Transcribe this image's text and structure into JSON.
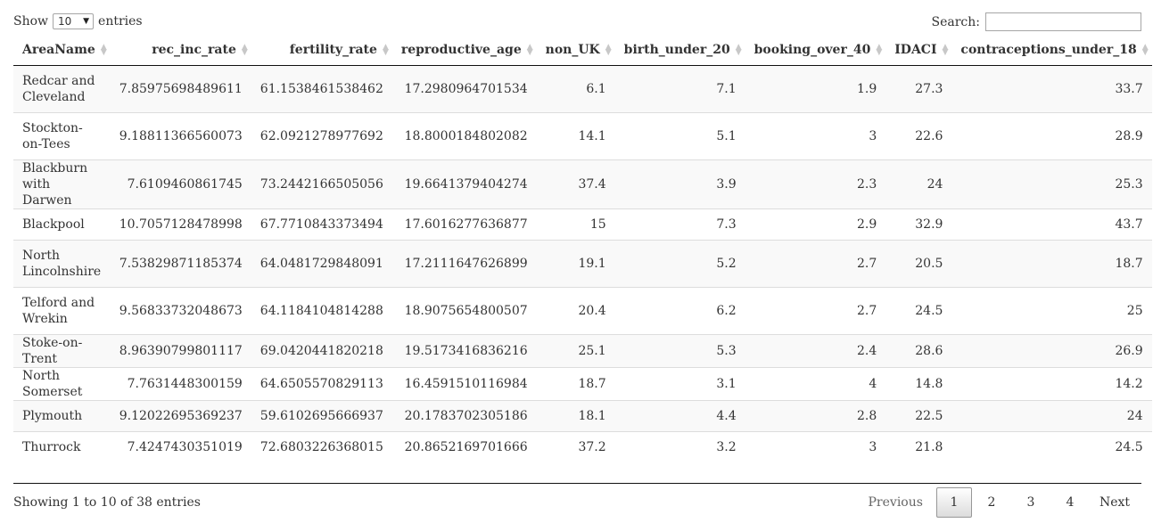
{
  "length": {
    "show_label": "Show",
    "selected": "10",
    "entries_label": "entries"
  },
  "search": {
    "label": "Search:",
    "value": "",
    "placeholder": ""
  },
  "table": {
    "columns": [
      "AreaName",
      "rec_inc_rate",
      "fertility_rate",
      "reproductive_age",
      "non_UK",
      "birth_under_20",
      "booking_over_40",
      "IDACI",
      "contraceptions_under_18"
    ],
    "rows": [
      [
        "Redcar and Cleveland",
        "7.85975698489611",
        "61.1538461538462",
        "17.2980964701534",
        "6.1",
        "7.1",
        "1.9",
        "27.3",
        "33.7"
      ],
      [
        "Stockton-on-Tees",
        "9.18811366560073",
        "62.0921278977692",
        "18.8000184802082",
        "14.1",
        "5.1",
        "3",
        "22.6",
        "28.9"
      ],
      [
        "Blackburn with Darwen",
        "7.6109460861745",
        "73.2442166505056",
        "19.6641379404274",
        "37.4",
        "3.9",
        "2.3",
        "24",
        "25.3"
      ],
      [
        "Blackpool",
        "10.7057128478998",
        "67.7710843373494",
        "17.6016277636877",
        "15",
        "7.3",
        "2.9",
        "32.9",
        "43.7"
      ],
      [
        "North Lincolnshire",
        "7.53829871185374",
        "64.0481729848091",
        "17.2111647626899",
        "19.1",
        "5.2",
        "2.7",
        "20.5",
        "18.7"
      ],
      [
        "Telford and Wrekin",
        "9.56833732048673",
        "64.1184104814288",
        "18.9075654800507",
        "20.4",
        "6.2",
        "2.7",
        "24.5",
        "25"
      ],
      [
        "Stoke-on-Trent",
        "8.96390799801117",
        "69.0420441820218",
        "19.5173416836216",
        "25.1",
        "5.3",
        "2.4",
        "28.6",
        "26.9"
      ],
      [
        "North Somerset",
        "7.7631448300159",
        "64.6505570829113",
        "16.4591510116984",
        "18.7",
        "3.1",
        "4",
        "14.8",
        "14.2"
      ],
      [
        "Plymouth",
        "9.12022695369237",
        "59.6102695666937",
        "20.1783702305186",
        "18.1",
        "4.4",
        "2.8",
        "22.5",
        "24"
      ],
      [
        "Thurrock",
        "7.4247430351019",
        "72.6803226368015",
        "20.8652169701666",
        "37.2",
        "3.2",
        "3",
        "21.8",
        "24.5"
      ]
    ]
  },
  "info": "Showing 1 to 10 of 38 entries",
  "pagination": {
    "previous": "Previous",
    "pages": [
      "1",
      "2",
      "3",
      "4"
    ],
    "current": "1",
    "next": "Next"
  },
  "icons": {
    "sort": "sort-both-icon",
    "dropdown": "caret-down-icon"
  }
}
